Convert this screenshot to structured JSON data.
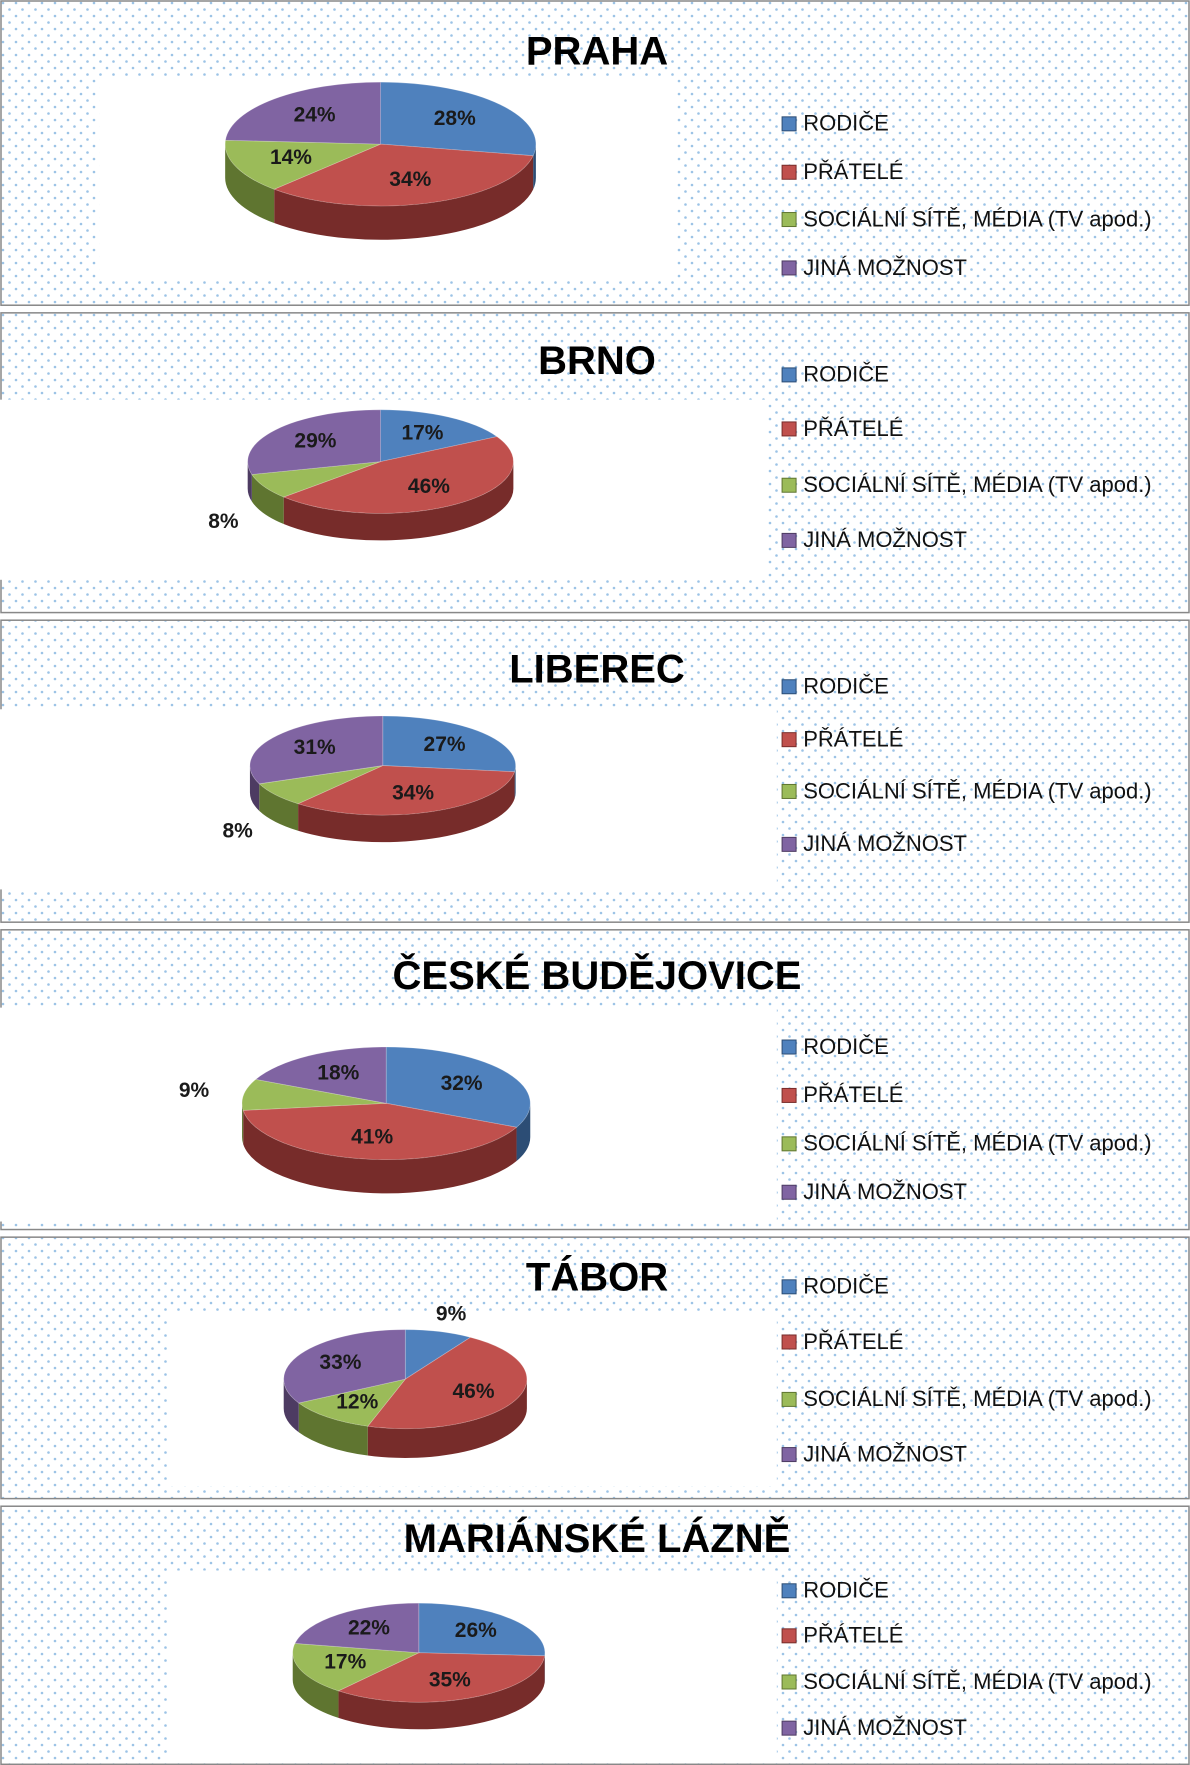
{
  "chart_data": [
    {
      "type": "pie",
      "title": "PRAHA",
      "categories": [
        "RODIČE",
        "PŘÁTELÉ",
        "SOCIÁLNÍ SÍTĚ, MÉDIA (TV apod.)",
        "JINÁ MOŽNOST"
      ],
      "values": [
        28,
        34,
        14,
        24
      ],
      "value_labels": [
        "28%",
        "34%",
        "14%",
        "24%"
      ],
      "colors": [
        "#4f81bd",
        "#c0504d",
        "#9bbb59",
        "#8064a2"
      ]
    },
    {
      "type": "pie",
      "title": "BRNO",
      "categories": [
        "RODIČE",
        "PŘÁTELÉ",
        "SOCIÁLNÍ SÍTĚ, MÉDIA (TV apod.)",
        "JINÁ MOŽNOST"
      ],
      "values": [
        17,
        46,
        8,
        29
      ],
      "value_labels": [
        "17%",
        "46%",
        "8%",
        "29%"
      ],
      "colors": [
        "#4f81bd",
        "#c0504d",
        "#9bbb59",
        "#8064a2"
      ]
    },
    {
      "type": "pie",
      "title": "LIBEREC",
      "categories": [
        "RODIČE",
        "PŘÁTELÉ",
        "SOCIÁLNÍ SÍTĚ, MÉDIA (TV apod.)",
        "JINÁ MOŽNOST"
      ],
      "values": [
        27,
        34,
        8,
        31
      ],
      "value_labels": [
        "27%",
        "34%",
        "8%",
        "31%"
      ],
      "colors": [
        "#4f81bd",
        "#c0504d",
        "#9bbb59",
        "#8064a2"
      ]
    },
    {
      "type": "pie",
      "title": "ČESKÉ BUDĚJOVICE",
      "categories": [
        "RODIČE",
        "PŘÁTELÉ",
        "SOCIÁLNÍ SÍTĚ, MÉDIA (TV apod.)",
        "JINÁ MOŽNOST"
      ],
      "values": [
        32,
        41,
        9,
        18
      ],
      "value_labels": [
        "32%",
        "41%",
        "9%",
        "18%"
      ],
      "colors": [
        "#4f81bd",
        "#c0504d",
        "#9bbb59",
        "#8064a2"
      ]
    },
    {
      "type": "pie",
      "title": "TÁBOR",
      "categories": [
        "RODIČE",
        "PŘÁTELÉ",
        "SOCIÁLNÍ SÍTĚ, MÉDIA (TV apod.)",
        "JINÁ MOŽNOST"
      ],
      "values": [
        9,
        46,
        12,
        33
      ],
      "value_labels": [
        "9%",
        "46%",
        "12%",
        "33%"
      ],
      "colors": [
        "#4f81bd",
        "#c0504d",
        "#9bbb59",
        "#8064a2"
      ]
    },
    {
      "type": "pie",
      "title": "MARIÁNSKÉ LÁZNĚ",
      "categories": [
        "RODIČE",
        "PŘÁTELÉ",
        "SOCIÁLNÍ SÍTĚ, MÉDIA (TV apod.)",
        "JINÁ MOŽNOST"
      ],
      "values": [
        26,
        35,
        17,
        22
      ],
      "value_labels": [
        "26%",
        "35%",
        "17%",
        "22%"
      ],
      "colors": [
        "#4f81bd",
        "#c0504d",
        "#9bbb59",
        "#8064a2"
      ]
    }
  ]
}
